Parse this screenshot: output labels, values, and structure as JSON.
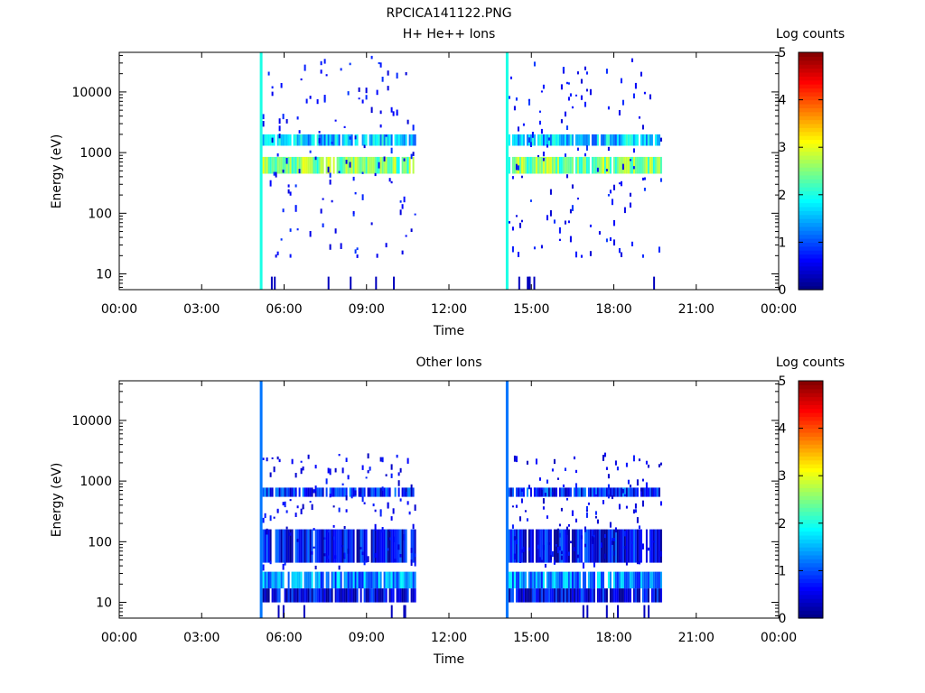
{
  "figure_title": "RPCICA141122.PNG",
  "chart_data": [
    {
      "type": "heatmap",
      "title": "H+ He++ Ions",
      "xlabel": "Time",
      "ylabel": "Energy (eV)",
      "xlim_hours": [
        0,
        24
      ],
      "x_tick_labels": [
        "00:00",
        "03:00",
        "06:00",
        "09:00",
        "12:00",
        "15:00",
        "18:00",
        "21:00",
        "00:00"
      ],
      "y_scale": "log",
      "ylim": [
        5.5,
        45000
      ],
      "y_tick_labels": [
        "10",
        "100",
        "1000",
        "10000"
      ],
      "y_tick_values": [
        10,
        100,
        1000,
        10000
      ],
      "colorbar": {
        "label": "Log counts",
        "range": [
          0,
          5
        ],
        "tick_labels": [
          "0",
          "1",
          "2",
          "3",
          "4",
          "5"
        ]
      },
      "data_intervals": [
        {
          "start": 5.15,
          "end": 10.8
        },
        {
          "start": 14.1,
          "end": 19.75
        }
      ],
      "bands": [
        {
          "energy_min": 1300,
          "energy_max": 2000,
          "log_counts": 1.6
        },
        {
          "energy_min": 450,
          "energy_max": 850,
          "log_counts": 2.5
        }
      ],
      "edge_spikes": [
        5.15,
        14.1
      ],
      "edge_spike_log_counts": 2.0,
      "scatter_energy_range": [
        20,
        40000
      ],
      "scatter_log_counts": 0.4
    },
    {
      "type": "heatmap",
      "title": "Other Ions",
      "xlabel": "Time",
      "ylabel": "Energy (eV)",
      "xlim_hours": [
        0,
        24
      ],
      "x_tick_labels": [
        "00:00",
        "03:00",
        "06:00",
        "09:00",
        "12:00",
        "15:00",
        "18:00",
        "21:00",
        "00:00"
      ],
      "y_scale": "log",
      "ylim": [
        5.5,
        45000
      ],
      "y_tick_labels": [
        "10",
        "100",
        "1000",
        "10000"
      ],
      "y_tick_values": [
        10,
        100,
        1000,
        10000
      ],
      "colorbar": {
        "label": "Log counts",
        "range": [
          0,
          5
        ],
        "tick_labels": [
          "0",
          "1",
          "2",
          "3",
          "4",
          "5"
        ]
      },
      "data_intervals": [
        {
          "start": 5.15,
          "end": 10.8
        },
        {
          "start": 14.1,
          "end": 19.75
        }
      ],
      "bands": [
        {
          "energy_min": 17,
          "energy_max": 32,
          "log_counts": 1.3
        },
        {
          "energy_min": 10,
          "energy_max": 17,
          "log_counts": 0.5
        },
        {
          "energy_min": 550,
          "energy_max": 780,
          "log_counts": 0.8
        },
        {
          "energy_min": 45,
          "energy_max": 160,
          "log_counts": 0.6
        }
      ],
      "edge_spikes": [
        5.15,
        14.1
      ],
      "edge_spike_log_counts": 1.2,
      "scatter_energy_range": [
        40,
        3000
      ],
      "scatter_log_counts": 0.3
    }
  ]
}
